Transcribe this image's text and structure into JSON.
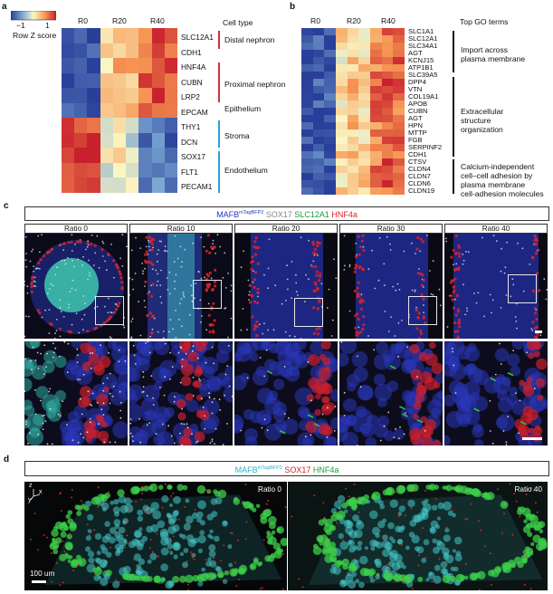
{
  "panel_a": {
    "letter": "a",
    "colorbar_label": "Row Z score",
    "colorbar_ticks": [
      "−1",
      "1"
    ],
    "columns": [
      "R0",
      "R20",
      "R40"
    ],
    "type_header": "Cell type",
    "rows": [
      [
        "SLC12A1",
        "Distal nephron"
      ],
      [
        "CDH1",
        ""
      ],
      [
        "HNF4A",
        "Proximal nephron"
      ],
      [
        "CUBN",
        ""
      ],
      [
        "LRP2",
        ""
      ],
      [
        "EPCAM",
        "Epithelium"
      ],
      [
        "THY1",
        "Stroma"
      ],
      [
        "DCN",
        ""
      ],
      [
        "SOX17",
        "Endothelium"
      ],
      [
        "FLT1",
        ""
      ],
      [
        "PECAM1",
        ""
      ]
    ],
    "groups": [
      {
        "label": "Distal nephron",
        "color": "#c8323c"
      },
      {
        "label": "Proximal nephron",
        "color": "#c8323c"
      },
      {
        "label": "Epithelium",
        "color": "#c8323c"
      },
      {
        "label": "Stroma",
        "color": "#2d9fd9"
      },
      {
        "label": "Endothelium",
        "color": "#2d9fd9"
      }
    ]
  },
  "panel_b": {
    "letter": "b",
    "columns": [
      "R0",
      "R20",
      "R40"
    ],
    "go_header": "Top GO terms",
    "genes": [
      "SLC1A1",
      "SLC12A1",
      "SLC34A1",
      "AGT",
      "KCNJ15",
      "ATP1B1",
      "SLC39A5",
      "DPP4",
      "VTN",
      "COL19A1",
      "APOB",
      "CUBN",
      "AGT",
      "HPN",
      "MTTP",
      "FGB",
      "SERPINF2",
      "CDH1",
      "CTSV",
      "CLDN4",
      "CLDN7",
      "CLDN6",
      "CLDN19"
    ],
    "terms": [
      {
        "lines": [
          "Import across",
          "plasma membrane"
        ]
      },
      {
        "lines": [
          "Extracellular",
          "structure",
          "organization"
        ]
      },
      {
        "lines": [
          "Calcium-independent",
          "cell–cell adhesion by",
          "plasma membrane",
          "cell-adhesion molecules"
        ]
      }
    ]
  },
  "panel_c": {
    "letter": "c",
    "legend": [
      {
        "text": "MAFB",
        "color": "#2233cc"
      },
      {
        "text": "mTagBFP2",
        "color": "#2233cc",
        "sup": true
      },
      {
        "text": " SOX17 ",
        "color": "#888888"
      },
      {
        "text": "SLC12A1 ",
        "color": "#1a9e3a"
      },
      {
        "text": "HNF4a",
        "color": "#d8232a"
      }
    ],
    "tiles": [
      "Ratio 0",
      "Ratio 10",
      "Ratio 20",
      "Ratio 30",
      "Ratio 40"
    ]
  },
  "panel_d": {
    "letter": "d",
    "legend": [
      {
        "text": "MAFB",
        "color": "#2bb5c8"
      },
      {
        "text": "mTagBFP2",
        "color": "#2bb5c8",
        "sup": true
      },
      {
        "text": " SOX17 ",
        "color": "#d8232a"
      },
      {
        "text": "HNF4a",
        "color": "#1a9e3a"
      }
    ],
    "left_label": "Ratio 0",
    "right_label": "Ratio 40",
    "scale_label": "100 um",
    "axes": [
      "z",
      "x",
      "y"
    ]
  }
}
